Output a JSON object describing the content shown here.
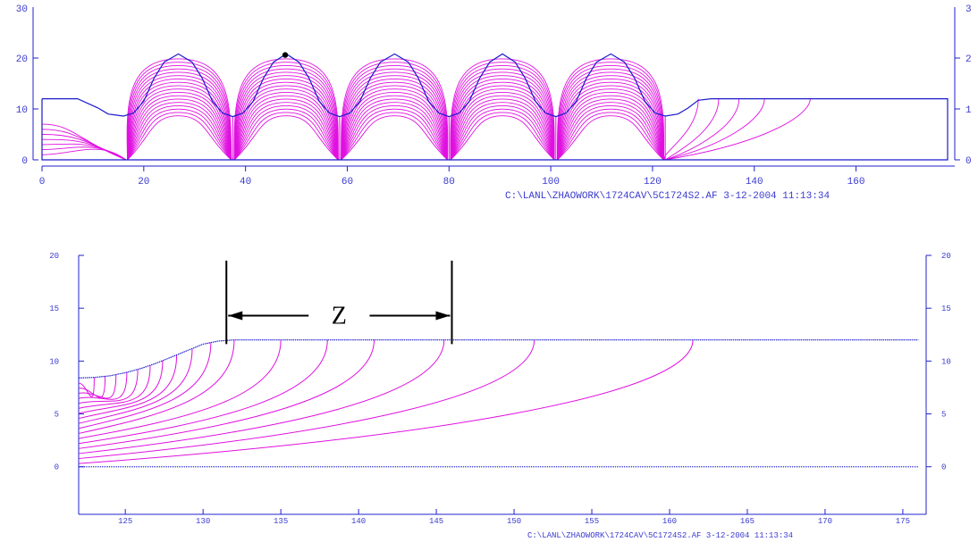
{
  "chart_data": [
    {
      "type": "line",
      "title": "",
      "xlabel": "",
      "ylabel": "",
      "xlim": [
        0,
        178
      ],
      "ylim": [
        0,
        30
      ],
      "x_ticks": [
        "0",
        "20",
        "40",
        "60",
        "80",
        "100",
        "120",
        "140",
        "160"
      ],
      "y_ticks": [
        "0",
        "10",
        "20"
      ],
      "y_ticks_right": [
        "0",
        "1",
        "2"
      ],
      "y_tick_top_partial_left": "30",
      "y_tick_top_partial_right": "3",
      "marker_point": [
        47.8,
        20.6
      ],
      "boundary": [
        [
          0,
          12
        ],
        [
          7,
          12
        ],
        [
          11,
          10.2
        ],
        [
          13,
          9
        ],
        [
          16,
          8.6
        ],
        [
          18,
          9.2
        ],
        [
          20,
          11.5
        ],
        [
          22,
          16
        ],
        [
          24,
          19.2
        ],
        [
          26.8,
          20.8
        ],
        [
          29.5,
          19.2
        ],
        [
          31.5,
          16
        ],
        [
          33.5,
          11.5
        ],
        [
          35.5,
          9.2
        ],
        [
          37.5,
          8.5
        ],
        [
          39.5,
          9.2
        ],
        [
          41.5,
          11.5
        ],
        [
          43.5,
          16
        ],
        [
          45.5,
          19.2
        ],
        [
          48,
          20.8
        ],
        [
          50.5,
          19.2
        ],
        [
          52.5,
          16
        ],
        [
          54.5,
          11.5
        ],
        [
          56.5,
          9.2
        ],
        [
          58.5,
          8.5
        ],
        [
          60.5,
          9.2
        ],
        [
          62.5,
          11.5
        ],
        [
          64.5,
          16
        ],
        [
          66.5,
          19.2
        ],
        [
          69.3,
          20.8
        ],
        [
          72,
          19.2
        ],
        [
          74,
          16
        ],
        [
          76,
          11.5
        ],
        [
          78,
          9.2
        ],
        [
          80,
          8.5
        ],
        [
          82,
          9.2
        ],
        [
          84,
          11.5
        ],
        [
          86,
          16
        ],
        [
          88,
          19.2
        ],
        [
          90.5,
          20.8
        ],
        [
          93,
          19.2
        ],
        [
          95,
          16
        ],
        [
          97,
          11.5
        ],
        [
          99,
          9.2
        ],
        [
          101,
          8.5
        ],
        [
          103,
          9.2
        ],
        [
          105,
          11.5
        ],
        [
          107,
          16
        ],
        [
          109,
          19.2
        ],
        [
          111.8,
          20.8
        ],
        [
          114.5,
          19.2
        ],
        [
          116.5,
          16
        ],
        [
          118.5,
          11.5
        ],
        [
          120.5,
          9.2
        ],
        [
          122.5,
          8.6
        ],
        [
          125,
          9
        ],
        [
          127,
          10.2
        ],
        [
          129,
          11.7
        ],
        [
          131.5,
          12
        ],
        [
          178,
          12
        ],
        [
          178,
          0
        ],
        [
          0,
          0
        ],
        [
          0,
          12
        ]
      ],
      "field_line_tails_x": [
        129,
        133,
        137,
        142,
        151
      ],
      "footer": "C:\\LANL\\ZHAOWORK\\1724CAV\\5C1724S2.AF  3-12-2004  11:13:34"
    },
    {
      "type": "line",
      "title": "",
      "xlabel": "",
      "ylabel": "",
      "xlim": [
        122,
        176.5
      ],
      "ylim": [
        -4.5,
        20
      ],
      "x_ticks": [
        "125",
        "130",
        "135",
        "140",
        "145",
        "150",
        "155",
        "160",
        "165",
        "170",
        "175"
      ],
      "y_ticks": [
        "0",
        "5",
        "10",
        "15",
        "20"
      ],
      "y_ticks_right": [
        "0",
        "5",
        "10",
        "15",
        "20"
      ],
      "boundary": [
        [
          122,
          8.4
        ],
        [
          123,
          8.45
        ],
        [
          124,
          8.6
        ],
        [
          125,
          8.9
        ],
        [
          126,
          9.3
        ],
        [
          127,
          9.8
        ],
        [
          128,
          10.4
        ],
        [
          129,
          11.0
        ],
        [
          130,
          11.6
        ],
        [
          131,
          11.9
        ],
        [
          132,
          12
        ],
        [
          176,
          12
        ]
      ],
      "axis_line_y": 0,
      "field_line_ends_x": [
        123,
        123.7,
        124.4,
        125.1,
        125.8,
        126.6,
        127.4,
        128.3,
        129.3,
        130.5,
        132,
        135,
        138,
        141,
        145.5,
        151.3,
        161.5
      ],
      "dimension": {
        "label": "Z",
        "x_start": 131.5,
        "x_end": 146,
        "y": 14.3
      },
      "footer": "C:\\LANL\\ZHAOWORK\\1724CAV\\5C1724S2.AF  3-12-2004  11:13:34"
    }
  ],
  "colors": {
    "axis": "#2222cc",
    "boundary": "#1a1acc",
    "field": "#e010e0",
    "dim": "#000000"
  }
}
